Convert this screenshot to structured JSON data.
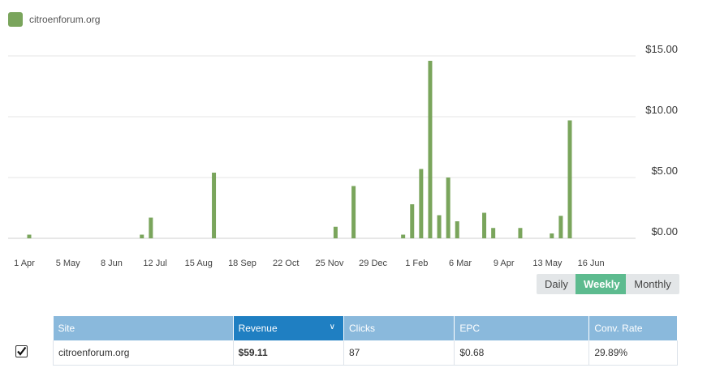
{
  "legend": {
    "label": "citroenforum.org",
    "color": "#7aa55c"
  },
  "chart_data": {
    "type": "bar",
    "series": [
      {
        "name": "citroenforum.org",
        "color": "#7aa55c",
        "values": [
          0.3,
          0,
          0,
          0,
          0,
          0,
          0,
          0,
          0,
          0,
          0,
          0,
          0,
          0,
          0,
          0,
          0,
          0,
          0,
          0,
          0,
          0,
          0,
          0,
          0,
          0.3,
          0,
          1.7,
          0,
          0,
          0,
          0,
          0,
          0,
          0,
          0,
          0,
          0,
          0,
          0,
          0,
          5.4,
          0,
          0,
          0,
          0,
          0,
          0,
          0,
          0,
          0,
          0,
          0,
          0,
          0,
          0,
          0,
          0,
          0,
          0,
          0,
          0,
          0,
          0,
          0,
          0,
          0,
          0,
          0.95,
          0,
          0,
          0,
          4.3,
          0,
          0,
          0,
          0,
          0,
          0,
          0,
          0,
          0,
          0,
          0.3,
          0,
          2.8,
          0,
          5.7,
          0,
          14.6,
          0,
          1.9,
          0,
          5.0,
          0,
          1.4,
          0,
          0,
          0,
          0,
          0,
          2.1,
          0,
          0.85,
          0,
          0,
          0,
          0,
          0,
          0.85,
          0,
          0,
          0,
          0,
          0,
          0,
          0.4,
          0,
          1.85,
          0,
          9.7
        ]
      }
    ],
    "x_tick_labels": [
      "1 Apr",
      "5 May",
      "8 Jun",
      "12 Jul",
      "15 Aug",
      "18 Sep",
      "22 Oct",
      "25 Nov",
      "29 Dec",
      "1 Feb",
      "6 Mar",
      "9 Apr",
      "13 May",
      "16 Jun"
    ],
    "y_tick_labels": [
      "$0.00",
      "$5.00",
      "$10.00",
      "$15.00"
    ],
    "y_ticks": [
      0,
      5,
      10,
      15
    ],
    "ylim": [
      0,
      15
    ],
    "grid": true,
    "legend_position": "top-left"
  },
  "granularity": {
    "options": [
      "Daily",
      "Weekly",
      "Monthly"
    ],
    "selected": "Weekly"
  },
  "table": {
    "headers": [
      "Site",
      "Revenue",
      "Clicks",
      "EPC",
      "Conv. Rate"
    ],
    "sort_indicator": "∨",
    "rows": [
      {
        "site": "citroenforum.org",
        "revenue": "$59.11",
        "clicks": "87",
        "epc": "$0.68",
        "conv_rate": "29.89%"
      }
    ]
  }
}
